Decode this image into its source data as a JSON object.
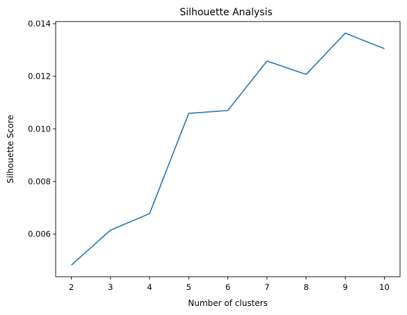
{
  "chart_data": {
    "type": "line",
    "title": "Silhouette Analysis",
    "xlabel": "Number of clusters",
    "ylabel": "Silhouette Score",
    "x": [
      2,
      3,
      4,
      5,
      6,
      7,
      8,
      9,
      10
    ],
    "series": [
      {
        "values": [
          0.00482,
          0.00615,
          0.00678,
          0.01059,
          0.0107,
          0.01258,
          0.01207,
          0.01364,
          0.01305
        ],
        "color": "#1f77b4"
      }
    ],
    "xlim": [
      1.6,
      10.4
    ],
    "ylim": [
      0.00438,
      0.01408
    ],
    "xticks": [
      2,
      3,
      4,
      5,
      6,
      7,
      8,
      9,
      10
    ],
    "xtick_labels": [
      "2",
      "3",
      "4",
      "5",
      "6",
      "7",
      "8",
      "9",
      "10"
    ],
    "yticks": [
      0.006,
      0.008,
      0.01,
      0.012,
      0.014
    ],
    "ytick_labels": [
      "0.006",
      "0.008",
      "0.010",
      "0.012",
      "0.014"
    ],
    "grid": false,
    "legend": "none"
  }
}
